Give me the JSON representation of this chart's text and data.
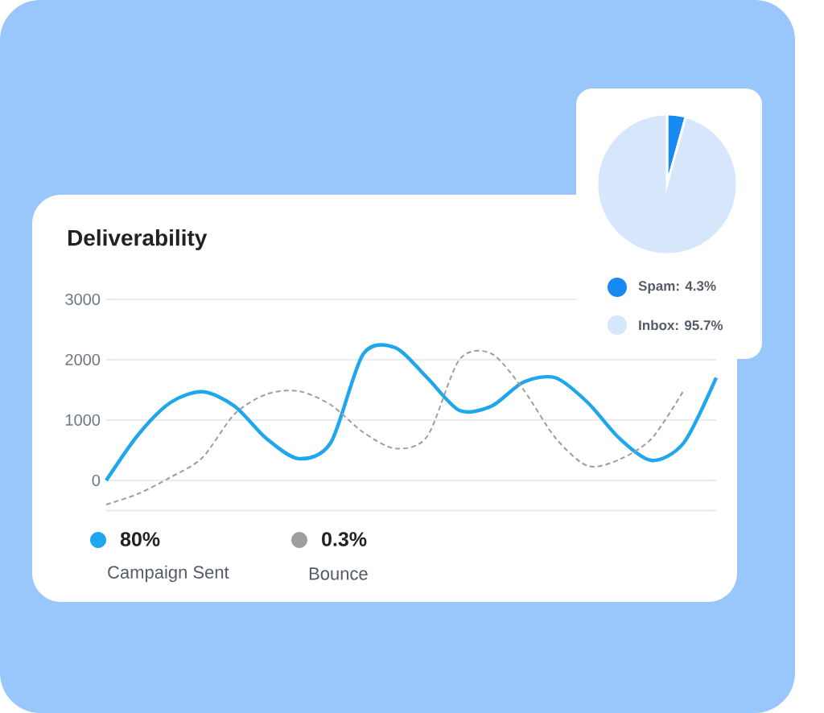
{
  "chart_data": [
    {
      "type": "line",
      "title": "Deliverability",
      "categories": [
        null,
        null,
        null,
        null,
        null,
        null,
        null,
        null,
        null,
        null,
        null,
        null,
        null,
        null,
        null,
        null,
        null,
        null,
        null,
        null
      ],
      "ylim": [
        -500,
        3000
      ],
      "yticks": [
        {
          "value": -500,
          "label": null
        },
        0,
        1000,
        2000,
        3000
      ],
      "grid": "y",
      "legend": "bottom",
      "annotations": [
        "80%",
        "0.3%"
      ],
      "series": [
        {
          "name": "Campaign Sent",
          "type": "line",
          "color": "#1ea7ec",
          "values": [
            0,
            760,
            1290,
            1470,
            1230,
            690,
            360,
            630,
            2090,
            2200,
            1700,
            1160,
            1230,
            1630,
            1700,
            1290,
            690,
            330,
            630,
            1700
          ]
        },
        {
          "name": "Bounce",
          "type": "line",
          "color": "#9e9e9e",
          "line_style": "dashed",
          "values": [
            -400,
            -220,
            50,
            380,
            1100,
            1430,
            1480,
            1250,
            800,
            530,
            730,
            2000,
            2100,
            1500,
            700,
            240,
            350,
            700,
            1500,
            null
          ]
        }
      ]
    },
    {
      "type": "pie",
      "categories": [
        "Spam: 4.3%",
        "Inbox: 95.7%"
      ],
      "values": [
        4.3,
        95.7
      ],
      "colors": [
        "#1689f3",
        "#d6e6fb"
      ],
      "legend": "bottom"
    }
  ]
}
